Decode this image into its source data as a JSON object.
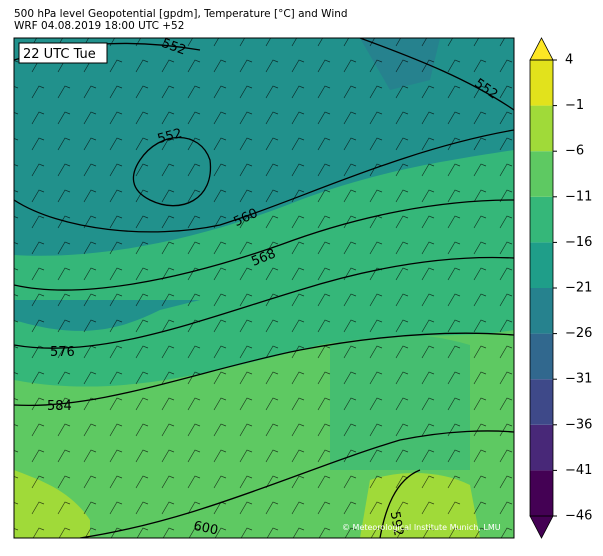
{
  "header": {
    "lines": [
      "500 hPa level Geopotential [gpdm], Temperature [°C] and Wind",
      "WRF 04.08.2019 18:00 UTC +52"
    ]
  },
  "map": {
    "time_label": "22 UTC Tue",
    "contour_labels": [
      552,
      552,
      552,
      560,
      568,
      576,
      584,
      600,
      592
    ],
    "copyright": "© Meteorological Institute Munich, LMU"
  },
  "colorbar": {
    "ticks": [
      {
        "value": -46,
        "label": "−46"
      },
      {
        "value": -41,
        "label": "−41"
      },
      {
        "value": -36,
        "label": "−36"
      },
      {
        "value": -31,
        "label": "−31"
      },
      {
        "value": -26,
        "label": "−26"
      },
      {
        "value": -21,
        "label": "−21"
      },
      {
        "value": -16,
        "label": "−16"
      },
      {
        "value": -11,
        "label": "−11"
      },
      {
        "value": -6,
        "label": "−6"
      },
      {
        "value": -1,
        "label": "−1"
      },
      4
    ],
    "lim": [
      -46,
      4
    ],
    "colors": [
      "#440154",
      "#482878",
      "#3e4989",
      "#31688e",
      "#26828e",
      "#1f9e89",
      "#35b779",
      "#5ec962",
      "#a0da39",
      "#e2e21c"
    ],
    "under_color": "#440154",
    "over_color": "#fde725"
  }
}
